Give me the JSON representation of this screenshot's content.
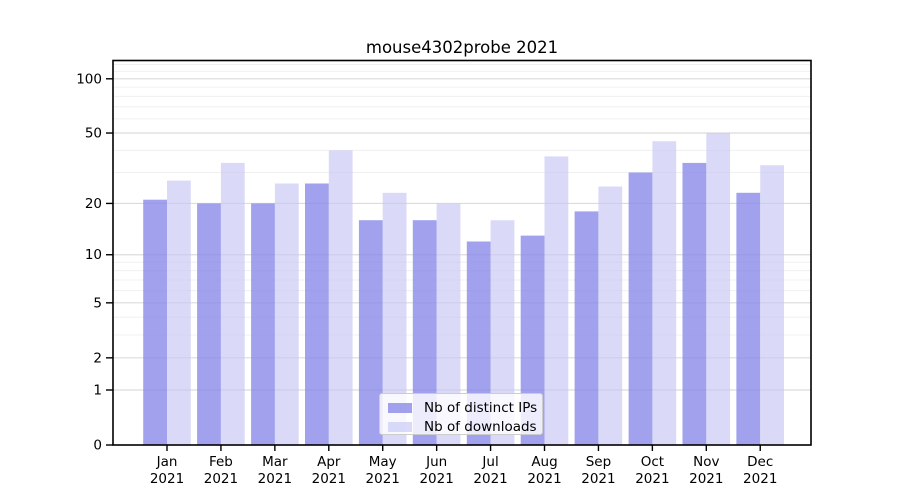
{
  "chart_data": {
    "type": "bar",
    "title": "mouse4302probe 2021",
    "months": [
      "Jan",
      "Feb",
      "Mar",
      "Apr",
      "May",
      "Jun",
      "Jul",
      "Aug",
      "Sep",
      "Oct",
      "Nov",
      "Dec"
    ],
    "year_label": "2021",
    "categories": [
      "Jan 2021",
      "Feb 2021",
      "Mar 2021",
      "Apr 2021",
      "May 2021",
      "Jun 2021",
      "Jul 2021",
      "Aug 2021",
      "Sep 2021",
      "Oct 2021",
      "Nov 2021",
      "Dec 2021"
    ],
    "series": [
      {
        "name": "Nb of distinct IPs",
        "color": "#8a8ae9",
        "alpha": 0.8,
        "values": [
          21,
          20,
          20,
          26,
          16,
          16,
          12,
          13,
          18,
          30,
          34,
          23
        ]
      },
      {
        "name": "Nb of downloads",
        "color": "#c6c6f4",
        "alpha": 0.65,
        "values": [
          27,
          34,
          26,
          40,
          23,
          20,
          16,
          37,
          25,
          45,
          50,
          33
        ]
      }
    ],
    "yscale": "log1p",
    "yticks": [
      0,
      1,
      2,
      5,
      10,
      20,
      50,
      100
    ],
    "yticks_minor": [
      3,
      4,
      6,
      7,
      8,
      9,
      30,
      40,
      60,
      70,
      80,
      90,
      110,
      120
    ],
    "ylim": [
      0,
      125
    ],
    "xlabel": "",
    "ylabel": "",
    "grid": true,
    "legend_position": "lower center"
  },
  "colors": {
    "background": "#ffffff",
    "spine": "#000000",
    "major_grid": "#dcdcdc",
    "minor_grid": "#f0f0f0",
    "tick_text": "#000000",
    "legend_border": "#cccccc",
    "legend_bg": "rgba(255,255,255,0.8)"
  }
}
